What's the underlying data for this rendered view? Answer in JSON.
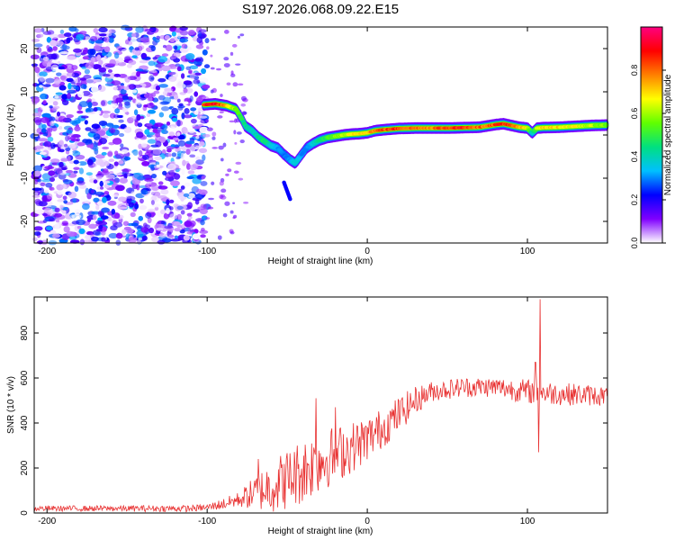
{
  "title": "S197.2026.068.09.22.E15",
  "chart_data": [
    {
      "type": "heatmap",
      "name": "spectrogram",
      "xlabel": "Height of straight line (km)",
      "ylabel": "Frequency (Hz)",
      "xlim": [
        -208,
        150
      ],
      "ylim": [
        -25,
        25
      ],
      "xticks": [
        -200,
        -100,
        0,
        100
      ],
      "xtick_labels": [
        "-200",
        "-100",
        "0",
        "100"
      ],
      "yticks": [
        -20,
        -10,
        0,
        10,
        20
      ],
      "ytick_labels": [
        "-20",
        "-10",
        "0",
        "10",
        "20"
      ],
      "ridge": {
        "x": [
          -102,
          -95,
          -88,
          -82,
          -78,
          -76,
          -72,
          -68,
          -64,
          -60,
          -56,
          -52,
          -48,
          -45,
          -42,
          -38,
          -34,
          -30,
          -25,
          -20,
          -15,
          -10,
          -5,
          0,
          5,
          10,
          20,
          30,
          40,
          50,
          60,
          70,
          80,
          85,
          90,
          95,
          100,
          103,
          106,
          110,
          120,
          130,
          140,
          150
        ],
        "y": [
          7.0,
          7.2,
          6.8,
          6.0,
          3.5,
          2.0,
          1.0,
          -0.5,
          -1.5,
          -2.5,
          -3.0,
          -4.5,
          -5.8,
          -6.5,
          -5.0,
          -3.0,
          -2.0,
          -1.2,
          -0.6,
          -0.3,
          0.0,
          0.2,
          0.3,
          0.5,
          1.0,
          1.2,
          1.5,
          1.6,
          1.6,
          1.6,
          1.7,
          1.8,
          2.4,
          2.6,
          2.2,
          1.8,
          1.6,
          0.5,
          1.6,
          1.7,
          1.8,
          2.0,
          2.2,
          2.3
        ],
        "amplitude": [
          0.9,
          1.0,
          0.8,
          0.6,
          0.5,
          0.45,
          0.4,
          0.45,
          0.5,
          0.4,
          0.35,
          0.3,
          0.35,
          0.4,
          0.35,
          0.3,
          0.4,
          0.45,
          0.55,
          0.6,
          0.65,
          0.7,
          0.75,
          0.8,
          0.85,
          0.9,
          0.9,
          0.85,
          0.85,
          0.9,
          0.95,
          0.85,
          0.9,
          0.95,
          0.85,
          0.8,
          0.7,
          0.4,
          0.7,
          0.75,
          0.75,
          0.7,
          0.65,
          0.6
        ]
      },
      "noise_region_x": [
        -208,
        -100
      ],
      "side_feature": {
        "x": [
          -52,
          -48
        ],
        "y": [
          -11,
          -15
        ]
      },
      "colorbar": {
        "label": "Normalized spectral amplitude",
        "ticks": [
          0.0,
          0.2,
          0.4,
          0.6,
          0.8
        ],
        "tick_labels": [
          "0.0",
          "0.2",
          "0.4",
          "0.6",
          "0.8"
        ],
        "range": [
          0,
          1
        ],
        "colors": [
          "#ffffff",
          "#8000ff",
          "#0000ff",
          "#00c0ff",
          "#00e080",
          "#60ff00",
          "#ffff00",
          "#ff8000",
          "#ff0000",
          "#ff0080"
        ]
      }
    },
    {
      "type": "line",
      "name": "snr",
      "xlabel": "Height of straight line (km)",
      "ylabel": "SNR (10 * v/v)",
      "xlim": [
        -208,
        150
      ],
      "ylim": [
        0,
        960
      ],
      "xticks": [
        -200,
        -100,
        0,
        100
      ],
      "xtick_labels": [
        "-200",
        "-100",
        "0",
        "100"
      ],
      "yticks": [
        0,
        200,
        400,
        600,
        800
      ],
      "ytick_labels": [
        "0",
        "200",
        "400",
        "600",
        "800"
      ],
      "color": "#e83030",
      "envelope": {
        "x": [
          -208,
          -110,
          -100,
          -90,
          -80,
          -70,
          -60,
          -50,
          -40,
          -30,
          -20,
          -10,
          0,
          10,
          20,
          30,
          40,
          60,
          80,
          100,
          120,
          150
        ],
        "y": [
          20,
          20,
          25,
          40,
          60,
          90,
          120,
          150,
          190,
          230,
          260,
          290,
          330,
          380,
          440,
          500,
          540,
          560,
          560,
          540,
          530,
          520
        ]
      },
      "noise_amplitude": {
        "x": [
          -208,
          -100,
          -80,
          -60,
          -40,
          -20,
          0,
          20,
          40,
          80,
          100,
          150
        ],
        "y": [
          12,
          15,
          35,
          120,
          150,
          130,
          100,
          80,
          45,
          45,
          55,
          45
        ]
      },
      "spikes": [
        {
          "x": -68,
          "y": 240
        },
        {
          "x": -32,
          "y": 510
        },
        {
          "x": -20,
          "y": 470
        },
        {
          "x": 105,
          "y": 670
        },
        {
          "x": 107,
          "y": 270
        },
        {
          "x": 108,
          "y": 950
        }
      ]
    }
  ]
}
